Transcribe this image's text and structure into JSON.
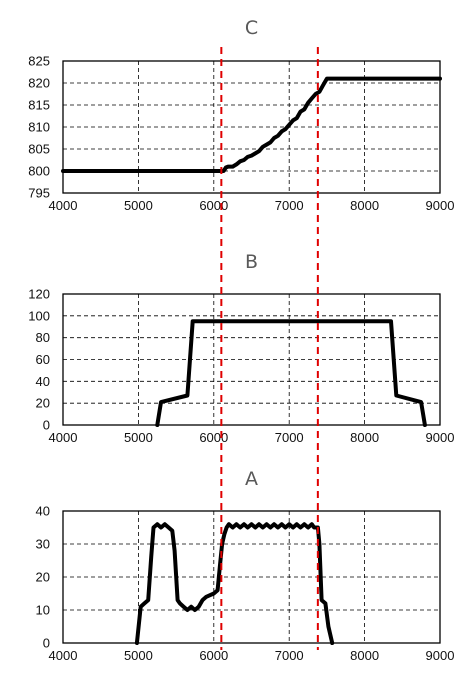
{
  "figure": {
    "line_color": "#000000",
    "marker_color": "#e00000",
    "markers_x": [
      6100,
      7380
    ]
  },
  "chart_data": [
    {
      "id": "C",
      "type": "line",
      "title": "C",
      "xlim": [
        4000,
        9000
      ],
      "ylim": [
        795,
        825
      ],
      "xticks": [
        "4000",
        "5000",
        "6000",
        "7000",
        "8000",
        "9000"
      ],
      "yticks": [
        "795",
        "800",
        "805",
        "810",
        "815",
        "820",
        "825"
      ],
      "x_tick_values": [
        4000,
        5000,
        6000,
        7000,
        8000,
        9000
      ],
      "y_tick_values": [
        795,
        800,
        805,
        810,
        815,
        820,
        825
      ],
      "grid": true,
      "series": [
        {
          "x": [
            4000,
            6100,
            6130,
            6160,
            6190,
            6220,
            6250,
            6300,
            6350,
            6400,
            6450,
            6500,
            6550,
            6600,
            6650,
            6700,
            6750,
            6800,
            6850,
            6900,
            6950,
            7000,
            7050,
            7100,
            7150,
            7200,
            7250,
            7300,
            7350,
            7400,
            7450,
            7500,
            7550,
            9000
          ],
          "y": [
            800,
            800,
            800,
            800.8,
            801,
            801,
            801,
            801.5,
            802.2,
            802.5,
            803.2,
            803.5,
            804,
            804.5,
            805.5,
            806,
            806.5,
            807.5,
            808,
            809,
            809.5,
            810.5,
            811.5,
            812,
            813.5,
            814,
            815.5,
            816.5,
            817.5,
            818,
            819.5,
            821,
            821,
            821
          ]
        }
      ]
    },
    {
      "id": "B",
      "type": "line",
      "title": "B",
      "xlim": [
        4000,
        9000
      ],
      "ylim": [
        0,
        120
      ],
      "xticks": [
        "4000",
        "5000",
        "6000",
        "7000",
        "8000",
        "9000"
      ],
      "yticks": [
        "0",
        "20",
        "40",
        "60",
        "80",
        "100",
        "120"
      ],
      "x_tick_values": [
        4000,
        5000,
        6000,
        7000,
        8000,
        9000
      ],
      "y_tick_values": [
        0,
        20,
        40,
        60,
        80,
        100,
        120
      ],
      "grid": true,
      "series": [
        {
          "x": [
            5250,
            5300,
            5650,
            5720,
            8350,
            8420,
            8750,
            8800
          ],
          "y": [
            0,
            21,
            27,
            95,
            95,
            27,
            21,
            0
          ]
        }
      ]
    },
    {
      "id": "A",
      "type": "line",
      "title": "A",
      "xlim": [
        4000,
        9000
      ],
      "ylim": [
        0,
        40
      ],
      "xticks": [
        "4000",
        "5000",
        "6000",
        "7000",
        "8000",
        "9000"
      ],
      "yticks": [
        "0",
        "10",
        "20",
        "30",
        "40"
      ],
      "x_tick_values": [
        4000,
        5000,
        6000,
        7000,
        8000,
        9000
      ],
      "y_tick_values": [
        0,
        10,
        20,
        30,
        40
      ],
      "grid": true,
      "series": [
        {
          "x": [
            4980,
            5030,
            5080,
            5130,
            5170,
            5200,
            5250,
            5300,
            5350,
            5400,
            5450,
            5480,
            5520,
            5550,
            5600,
            5650,
            5700,
            5750,
            5800,
            5850,
            5900,
            6000,
            6050,
            6080,
            6110,
            6140,
            6170,
            6200,
            6250,
            6300,
            6350,
            6400,
            6450,
            6500,
            6550,
            6600,
            6650,
            6700,
            6750,
            6800,
            6850,
            6900,
            6950,
            7000,
            7050,
            7100,
            7150,
            7200,
            7250,
            7300,
            7330,
            7380,
            7400,
            7430,
            7480,
            7520,
            7570
          ],
          "y": [
            0,
            11,
            12,
            13,
            26,
            35,
            36,
            35,
            36,
            35,
            34,
            28,
            13,
            12,
            11,
            10,
            11,
            10,
            11,
            13,
            14,
            15,
            16,
            23,
            30,
            33,
            35,
            36,
            35,
            36,
            35,
            36,
            35,
            36,
            35,
            36,
            35,
            36,
            35,
            36,
            35,
            36,
            35,
            36,
            35,
            36,
            35,
            36,
            35,
            36,
            35,
            35,
            30,
            13,
            12,
            5,
            0
          ]
        }
      ]
    }
  ]
}
